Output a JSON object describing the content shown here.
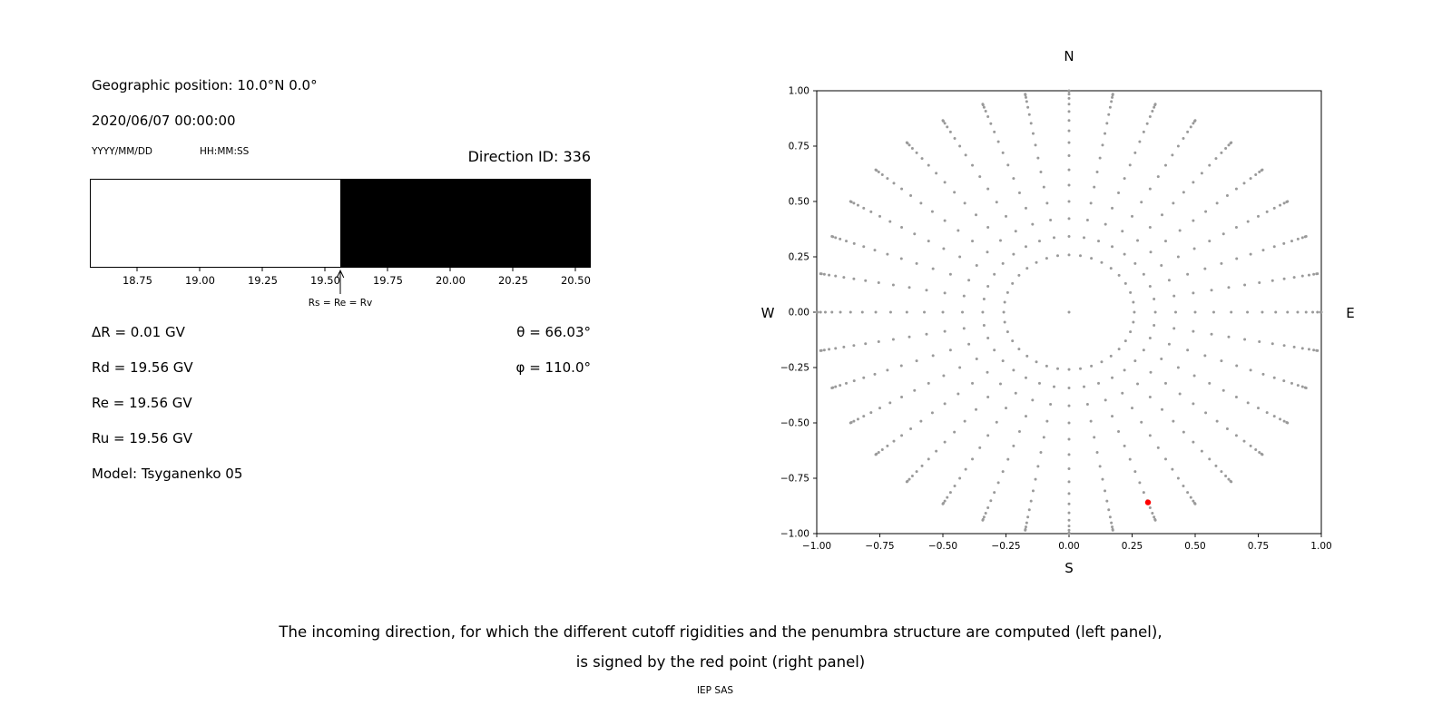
{
  "header": {
    "geographic_position": "Geographic position: 10.0°N 0.0°",
    "datetime": "2020/06/07 00:00:00",
    "date_format_label": "YYYY/MM/DD",
    "time_format_label": "HH:MM:SS",
    "direction_id_label": "Direction ID: 336"
  },
  "values": {
    "delta_r": "ΔR = 0.01 GV",
    "rd": "Rd = 19.56 GV",
    "re": "Re = 19.56 GV",
    "ru": "Ru = 19.56 GV",
    "model": "Model: Tsyganenko 05",
    "theta": "θ = 66.03°",
    "phi": "φ = 110.0°"
  },
  "caption": {
    "line1": "The incoming direction, for which the different cutoff rigidities and the penumbra structure are computed (left panel),",
    "line2": "is signed by the red point (right panel)",
    "credit": "IEP SAS"
  },
  "chart_data": [
    {
      "type": "area",
      "name": "penumbra-structure",
      "xlim": [
        18.56,
        20.56
      ],
      "x_tick_values": [
        18.75,
        19.0,
        19.25,
        19.5,
        19.75,
        20.0,
        20.25,
        20.5
      ],
      "x_tick_labels": [
        "18.75",
        "19.00",
        "19.25",
        "19.50",
        "19.75",
        "20.00",
        "20.25",
        "20.50"
      ],
      "regions": [
        {
          "from": 18.56,
          "to": 19.56,
          "color": "#ffffff"
        },
        {
          "from": 19.56,
          "to": 20.56,
          "color": "#000000"
        }
      ],
      "annotation": {
        "value": 19.56,
        "label": "Rs = Re = Rv"
      }
    },
    {
      "type": "scatter",
      "name": "incoming-directions",
      "xlim": [
        -1,
        1
      ],
      "ylim": [
        -1,
        1
      ],
      "x_tick_values": [
        -1,
        -0.75,
        -0.5,
        -0.25,
        0,
        0.25,
        0.5,
        0.75,
        1
      ],
      "x_tick_labels": [
        "−1.00",
        "−0.75",
        "−0.50",
        "−0.25",
        "0.00",
        "0.25",
        "0.50",
        "0.75",
        "1.00"
      ],
      "y_tick_values": [
        1,
        0.75,
        0.5,
        0.25,
        0,
        -0.25,
        -0.5,
        -0.75,
        -1
      ],
      "y_tick_labels": [
        "1.00",
        "0.75",
        "0.50",
        "0.25",
        "0.00",
        "−0.25",
        "−0.50",
        "−0.75",
        "−1.00"
      ],
      "compass": {
        "top": "N",
        "bottom": "S",
        "left": "W",
        "right": "E"
      },
      "grid": false,
      "legend": "none",
      "dot_color": "#9a9a9a",
      "direction_grid": {
        "azimuth_deg_start": 0,
        "azimuth_deg_step": 10,
        "azimuth_count": 36,
        "zenith_deg_start": 15,
        "zenith_deg_step": 5,
        "zenith_deg_end": 90,
        "center_dot": true,
        "projection": "x=-sin(zenith)*cos(azimuth), y=-sin(zenith)*sin(azimuth)"
      },
      "selected_direction": {
        "theta_deg": 66.03,
        "phi_deg": 110.0,
        "x": 0.313,
        "y": -0.859,
        "color": "#ff0000"
      }
    }
  ]
}
